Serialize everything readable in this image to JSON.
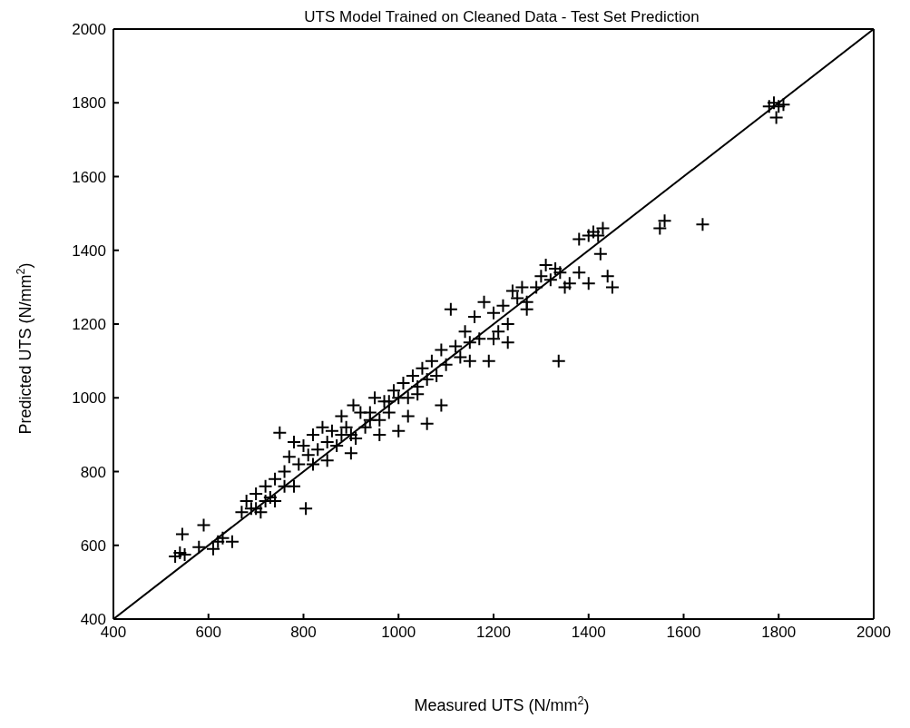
{
  "chart_data": {
    "type": "scatter",
    "title": "UTS Model Trained on Cleaned Data - Test Set Prediction",
    "xlabel": "Measured UTS (N/mm$^{2}$)",
    "ylabel": "Predicted UTS (N/mm$^{2}$)",
    "xlim": [
      400,
      2000
    ],
    "ylim": [
      400,
      2000
    ],
    "xticks": [
      400,
      600,
      800,
      1000,
      1200,
      1400,
      1600,
      1800,
      2000
    ],
    "yticks": [
      400,
      600,
      800,
      1000,
      1200,
      1400,
      1600,
      1800,
      2000
    ],
    "marker": "cross",
    "series": [
      {
        "color": "#000000",
        "x": [
          530,
          540,
          545,
          550,
          590,
          580,
          610,
          620,
          630,
          650,
          670,
          680,
          690,
          700,
          710,
          720,
          730,
          740,
          750,
          760,
          770,
          780,
          790,
          800,
          805,
          810,
          820,
          830,
          840,
          850,
          860,
          870,
          880,
          890,
          900,
          905,
          910,
          920,
          930,
          940,
          950,
          960,
          970,
          980,
          990,
          1000,
          1010,
          1020,
          1030,
          1040,
          1050,
          1060,
          1070,
          1080,
          1090,
          1100,
          1110,
          1120,
          1130,
          1140,
          1150,
          1160,
          1170,
          1180,
          1190,
          1200,
          1210,
          1220,
          1230,
          1240,
          1250,
          1260,
          1270,
          1290,
          1300,
          1310,
          1320,
          1330,
          1340,
          1337,
          1360,
          1380,
          1400,
          1410,
          1420,
          1425,
          1430,
          1440,
          1450,
          1550,
          1560,
          1640,
          1780,
          1790,
          1795,
          1800,
          1810,
          1060,
          1090,
          960,
          1020,
          1000,
          1040,
          900,
          880,
          850,
          820,
          780,
          760,
          740,
          700,
          720,
          940,
          980,
          1150,
          1200,
          1230,
          1270,
          1350,
          1380,
          1400
        ],
        "values": [
          570,
          580,
          630,
          575,
          655,
          595,
          590,
          610,
          620,
          610,
          690,
          720,
          700,
          740,
          690,
          760,
          730,
          780,
          905,
          800,
          840,
          880,
          820,
          870,
          700,
          845,
          900,
          860,
          920,
          880,
          910,
          870,
          950,
          920,
          900,
          980,
          890,
          960,
          920,
          960,
          1000,
          940,
          990,
          960,
          1020,
          1000,
          1040,
          1000,
          1060,
          1030,
          1080,
          1050,
          1100,
          1060,
          1130,
          1090,
          1240,
          1140,
          1110,
          1180,
          1150,
          1220,
          1160,
          1260,
          1100,
          1230,
          1180,
          1250,
          1200,
          1290,
          1270,
          1300,
          1260,
          1300,
          1330,
          1360,
          1320,
          1350,
          1340,
          1100,
          1310,
          1430,
          1440,
          1450,
          1440,
          1390,
          1460,
          1330,
          1300,
          1460,
          1480,
          1470,
          1790,
          1800,
          1760,
          1790,
          1795,
          930,
          980,
          900,
          950,
          910,
          1010,
          850,
          900,
          830,
          820,
          760,
          760,
          720,
          700,
          720,
          940,
          990,
          1100,
          1160,
          1150,
          1240,
          1300,
          1340,
          1310
        ]
      },
      {
        "type": "line",
        "marker": "none",
        "color": "#000000",
        "x": [
          400,
          2000
        ],
        "values": [
          400,
          2000
        ]
      }
    ]
  }
}
